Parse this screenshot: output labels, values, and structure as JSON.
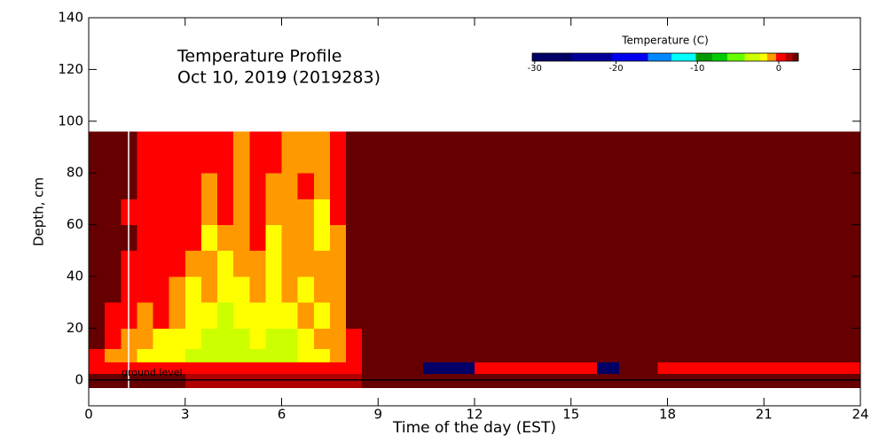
{
  "chart_data": {
    "type": "heatmap",
    "title": "Temperature Profile",
    "subtitle": "Oct 10, 2019 (2019283)",
    "x_label": "Time of the day (EST)",
    "y_label": "Depth, cm",
    "xlim": [
      0,
      24
    ],
    "xticks": [
      0,
      3,
      6,
      9,
      12,
      15,
      18,
      21,
      24
    ],
    "ylim": [
      -10,
      140
    ],
    "yticks": [
      0,
      20,
      40,
      60,
      80,
      100,
      120,
      140
    ],
    "x_edges": [
      0,
      0.5,
      1,
      1.5,
      2,
      2.5,
      3,
      3.5,
      4,
      4.5,
      5,
      5.5,
      6,
      6.5,
      7,
      7.5,
      8,
      8.5,
      10.4,
      12,
      15.8,
      16.5,
      17.7,
      24
    ],
    "y_edges": [
      -3,
      2.5,
      7,
      12,
      20,
      30,
      40,
      50,
      60,
      70,
      80,
      96
    ],
    "z": [
      [
        2.0,
        2.0,
        2.0,
        2.0,
        2.0,
        2.0,
        1.2,
        1.2,
        1.2,
        1.2,
        1.2,
        1.2,
        1.2,
        1.2,
        1.2,
        1.2,
        1.2,
        2.0,
        2.0,
        2.0,
        2.0,
        2.0,
        2.0
      ],
      [
        0.3,
        0.3,
        0.3,
        0.3,
        0.3,
        0.3,
        0.3,
        0.3,
        0.3,
        0.3,
        0.3,
        0.3,
        0.3,
        0.3,
        0.3,
        0.3,
        0.3,
        2.0,
        -28,
        0.3,
        -28,
        2.0,
        0.3
      ],
      [
        0.3,
        -1,
        -1,
        -2,
        -2,
        -2,
        -3,
        -3,
        -3,
        -3,
        -3,
        -3,
        -3,
        -2,
        -2,
        -1,
        0.3,
        2.0,
        2.0,
        2.0,
        2.0,
        2.0,
        2.0
      ],
      [
        2.0,
        0.3,
        -1,
        -1,
        -2,
        -2,
        -2,
        -3,
        -3,
        -3,
        -2,
        -3,
        -3,
        -2,
        -1,
        -1,
        0.3,
        2.0,
        2.0,
        2.0,
        2.0,
        2.0,
        2.0
      ],
      [
        2.0,
        0.3,
        0.3,
        -1,
        0.3,
        -1,
        -2,
        -2,
        -3,
        -2,
        -2,
        -2,
        -2,
        -1,
        -2,
        -1,
        2.0,
        2.0,
        2.0,
        2.0,
        2.0,
        2.0,
        2.0
      ],
      [
        2.0,
        2.0,
        0.3,
        0.3,
        0.3,
        -1,
        -2,
        -1,
        -2,
        -2,
        -1,
        -2,
        -1,
        -2,
        -1,
        -1,
        2.0,
        2.0,
        2.0,
        2.0,
        2.0,
        2.0,
        2.0
      ],
      [
        2.0,
        2.0,
        0.3,
        0.3,
        0.3,
        0.3,
        -1,
        -1,
        -2,
        -1,
        -1,
        -2,
        -1,
        -1,
        -1,
        -1,
        2.0,
        2.0,
        2.0,
        2.0,
        2.0,
        2.0,
        2.0
      ],
      [
        2.0,
        2.0,
        2.0,
        0.3,
        0.3,
        0.3,
        0.3,
        -2,
        -1,
        -1,
        0.3,
        -2,
        -1,
        -1,
        -2,
        -1,
        2.0,
        2.0,
        2.0,
        2.0,
        2.0,
        2.0,
        2.0
      ],
      [
        2.0,
        2.0,
        0.3,
        0.3,
        0.3,
        0.3,
        0.3,
        -1,
        0.3,
        -1,
        0.3,
        -1,
        -1,
        -1,
        -2,
        0.3,
        2.0,
        2.0,
        2.0,
        2.0,
        2.0,
        2.0,
        2.0
      ],
      [
        2.0,
        2.0,
        2.0,
        0.3,
        0.3,
        0.3,
        0.3,
        -1,
        0.3,
        -1,
        0.3,
        -1,
        -1,
        0.3,
        -1,
        0.3,
        2.0,
        2.0,
        2.0,
        2.0,
        2.0,
        2.0,
        2.0
      ],
      [
        2.0,
        2.0,
        2.0,
        0.3,
        0.3,
        0.3,
        0.3,
        0.3,
        0.3,
        -1,
        0.3,
        0.3,
        -1,
        -1,
        -1,
        0.3,
        2.0,
        2.0,
        2.0,
        2.0,
        2.0,
        2.0,
        2.0
      ]
    ],
    "colorbar": {
      "title": "Temperature (C)",
      "clim": [
        -30.3,
        2.4
      ],
      "ticks": [
        -30,
        -20,
        -10,
        0
      ]
    },
    "colormap": [
      {
        "value": -30.3,
        "color": "#000066"
      },
      {
        "value": -25.4,
        "color": "#000099"
      },
      {
        "value": -20.5,
        "color": "#0000ee"
      },
      {
        "value": -16.1,
        "color": "#0088ff"
      },
      {
        "value": -13.2,
        "color": "#00ffff"
      },
      {
        "value": -10.2,
        "color": "#009900"
      },
      {
        "value": -8.2,
        "color": "#00cc00"
      },
      {
        "value": -6.3,
        "color": "#66ff00"
      },
      {
        "value": -4.2,
        "color": "#ccff00"
      },
      {
        "value": -2.3,
        "color": "#ffff00"
      },
      {
        "value": -1.4,
        "color": "#ff9900"
      },
      {
        "value": -0.3,
        "color": "#ff0000"
      },
      {
        "value": 0.8,
        "color": "#b00000"
      },
      {
        "value": 1.7,
        "color": "#660000"
      }
    ],
    "ground_level": {
      "label": "ground level",
      "depth": 0
    }
  }
}
